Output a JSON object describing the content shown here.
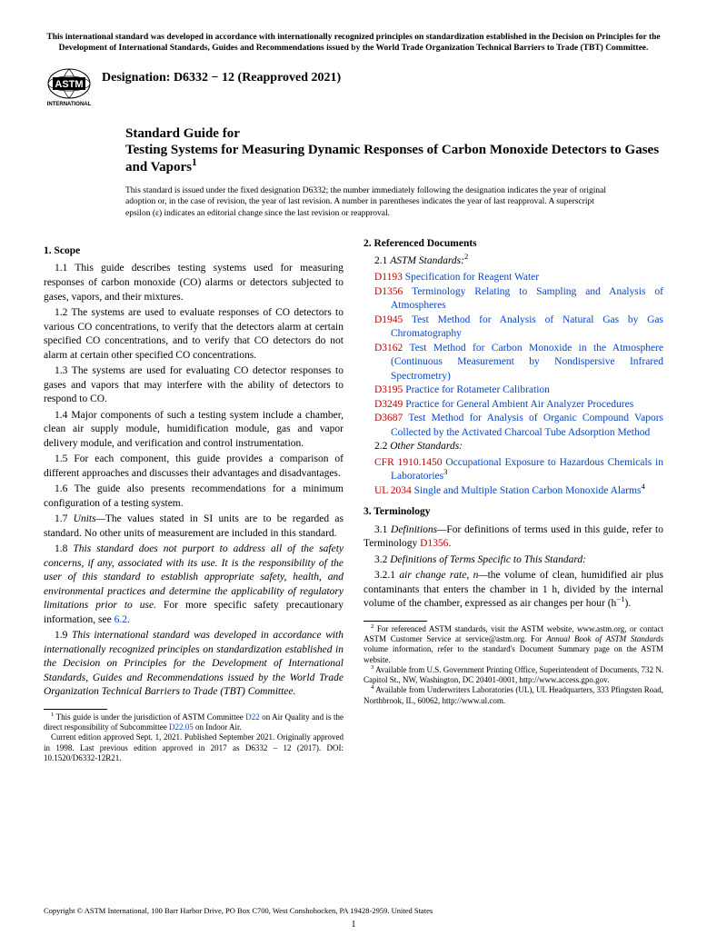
{
  "topNotice": "This international standard was developed in accordance with internationally recognized principles on standardization established in the Decision on Principles for the Development of International Standards, Guides and Recommendations issued by the World Trade Organization Technical Barriers to Trade (TBT) Committee.",
  "designation": "Designation: D6332 − 12 (Reapproved 2021)",
  "titleKicker": "Standard Guide for",
  "titleMain": "Testing Systems for Measuring Dynamic Responses of Carbon Monoxide Detectors to Gases and Vapors",
  "titleSup": "1",
  "issuance": "This standard is issued under the fixed designation D6332; the number immediately following the designation indicates the year of original adoption or, in the case of revision, the year of last revision. A number in parentheses indicates the year of last reapproval. A superscript epsilon (ε) indicates an editorial change since the last revision or reapproval.",
  "sec1Head": "1. Scope",
  "p11": "1.1 This guide describes testing systems used for measuring responses of carbon monoxide (CO) alarms or detectors subjected to gases, vapors, and their mixtures.",
  "p12": "1.2 The systems are used to evaluate responses of CO detectors to various CO concentrations, to verify that the detectors alarm at certain specified CO concentrations, and to verify that CO detectors do not alarm at certain other specified CO concentrations.",
  "p13": "1.3 The systems are used for evaluating CO detector responses to gases and vapors that may interfere with the ability of detectors to respond to CO.",
  "p14": "1.4 Major components of such a testing system include a chamber, clean air supply module, humidification module, gas and vapor delivery module, and verification and control instrumentation.",
  "p15": "1.5 For each component, this guide provides a comparison of different approaches and discusses their advantages and disadvantages.",
  "p16": "1.6 The guide also presents recommendations for a minimum configuration of a testing system.",
  "p17a": "1.7 ",
  "p17label": "Units—",
  "p17b": "The values stated in SI units are to be regarded as standard. No other units of measurement are included in this standard.",
  "p18a": "1.8 ",
  "p18b": "This standard does not purport to address all of the safety concerns, if any, associated with its use. It is the responsibility of the user of this standard to establish appropriate safety, health, and environmental practices and determine the applicability of regulatory limitations prior to use.",
  "p18c": " For more specific safety precautionary information, see ",
  "p18link": "6.2",
  "p18d": ".",
  "p19a": "1.9 ",
  "p19b": "This international standard was developed in accordance with internationally recognized principles on standardization established in the Decision on Principles for the Development of International Standards, Guides and Recommendations issued by the World Trade Organization Technical Barriers to Trade (TBT) Committee.",
  "fn1a": " This guide is under the jurisdiction of ASTM Committee ",
  "fn1link1": "D22",
  "fn1b": " on Air Quality and is the direct responsibility of Subcommittee ",
  "fn1link2": "D22.05",
  "fn1c": " on Indoor Air.",
  "fn1d": "Current edition approved Sept. 1, 2021. Published September 2021. Originally approved in 1998. Last previous edition approved in 2017 as D6332 – 12 (2017). DOI: 10.1520/D6332-12R21.",
  "sec2Head": "2. Referenced Documents",
  "p21a": "2.1 ",
  "p21label": "ASTM Standards:",
  "p21sup": "2",
  "refs": [
    {
      "code": "D1193",
      "text": "Specification for Reagent Water"
    },
    {
      "code": "D1356",
      "text": "Terminology Relating to Sampling and Analysis of Atmospheres"
    },
    {
      "code": "D1945",
      "text": "Test Method for Analysis of Natural Gas by Gas Chromatography"
    },
    {
      "code": "D3162",
      "text": "Test Method for Carbon Monoxide in the Atmosphere (Continuous Measurement by Nondispersive Infrared Spectrometry)"
    },
    {
      "code": "D3195",
      "text": "Practice for Rotameter Calibration"
    },
    {
      "code": "D3249",
      "text": "Practice for General Ambient Air Analyzer Procedures"
    },
    {
      "code": "D3687",
      "text": "Test Method for Analysis of Organic Compound Vapors Collected by the Activated Charcoal Tube Adsorption Method"
    }
  ],
  "p22a": "2.2 ",
  "p22label": "Other Standards:",
  "ref2a_code": "CFR 1910.1450",
  "ref2a_text": "Occupational Exposure to Hazardous Chemicals in Laboratories",
  "ref2a_sup": "3",
  "ref2b_code": "UL 2034",
  "ref2b_text": "Single and Multiple Station Carbon Monoxide Alarms",
  "ref2b_sup": "4",
  "sec3Head": "3. Terminology",
  "p31a": "3.1 ",
  "p31label": "Definitions—",
  "p31b": "For definitions of terms used in this guide, refer to Terminology ",
  "p31link": "D1356",
  "p31c": ".",
  "p32a": "3.2 ",
  "p32label": "Definitions of Terms Specific to This Standard:",
  "p321a": "3.2.1 ",
  "p321term": "air change rate, n—",
  "p321b": "the volume of clean, humidified air plus contaminants that enters the chamber in 1 h, divided by the internal volume of the chamber, expressed as air changes per hour (h",
  "p321sup": "−1",
  "p321c": ").",
  "fn2a": " For referenced ASTM standards, visit the ASTM website, www.astm.org, or contact ASTM Customer Service at service@astm.org. For ",
  "fn2ital": "Annual Book of ASTM Standards",
  "fn2b": " volume information, refer to the standard's Document Summary page on the ASTM website.",
  "fn3": " Available from U.S. Government Printing Office, Superintendent of Documents, 732 N. Capitol St., NW, Washington, DC 20401-0001, http://www.access.gpo.gov.",
  "fn4": " Available from Underwriters Laboratories (UL), UL Headquarters, 333 Pfingsten Road, Northbrook, IL, 60062, http://www.ul.com.",
  "copyright": "Copyright © ASTM International, 100 Barr Harbor Drive, PO Box C700, West Conshohocken, PA 19428-2959. United States",
  "pagenum": "1"
}
